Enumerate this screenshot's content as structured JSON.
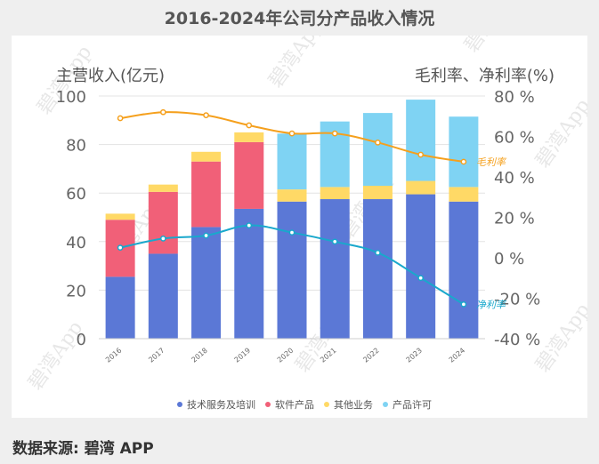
{
  "title": "2016-2024年公司分产品收入情况",
  "source": "数据来源: 碧湾 APP",
  "watermark": "碧湾App",
  "chart_data": {
    "type": "bar",
    "stacked": true,
    "categories": [
      "2016",
      "2017",
      "2018",
      "2019",
      "2020",
      "2021",
      "2022",
      "2023",
      "2024"
    ],
    "series": [
      {
        "name": "技术服务及培训",
        "color": "#5b78d6",
        "values": [
          25.5,
          35,
          46,
          53.5,
          56.5,
          57.5,
          57.5,
          59.5,
          56.5
        ]
      },
      {
        "name": "软件产品",
        "color": "#f16078",
        "values": [
          23.5,
          25.5,
          27,
          27.5,
          0,
          0,
          0,
          0,
          0
        ]
      },
      {
        "name": "其他业务",
        "color": "#ffd966",
        "values": [
          2.5,
          3,
          4,
          4,
          5,
          5,
          5.5,
          5.5,
          6
        ]
      },
      {
        "name": "产品许可",
        "color": "#7fd3f3",
        "values": [
          0,
          0,
          0,
          0,
          23,
          27,
          30,
          33.5,
          29
        ]
      }
    ],
    "lines": [
      {
        "name": "毛利率",
        "color": "#f5a01d",
        "values": [
          69,
          72,
          70.5,
          65.5,
          61.5,
          61.5,
          57,
          51,
          47.5
        ]
      },
      {
        "name": "净利率",
        "color": "#19a8cc",
        "values": [
          5,
          9.5,
          11,
          16,
          12.5,
          8,
          2.5,
          -10,
          -23
        ]
      }
    ],
    "ylabel": "主营收入(亿元)",
    "y2label": "毛利率、净利率(%)",
    "ylim": [
      0,
      100
    ],
    "yticks": [
      "0",
      "20",
      "40",
      "60",
      "80",
      "100"
    ],
    "y2lim": [
      -40,
      80
    ],
    "y2ticks": [
      "-40 %",
      "-20 %",
      "0 %",
      "20 %",
      "40 %",
      "60 %",
      "80 %"
    ],
    "legend_position": "bottom",
    "grid": true
  }
}
